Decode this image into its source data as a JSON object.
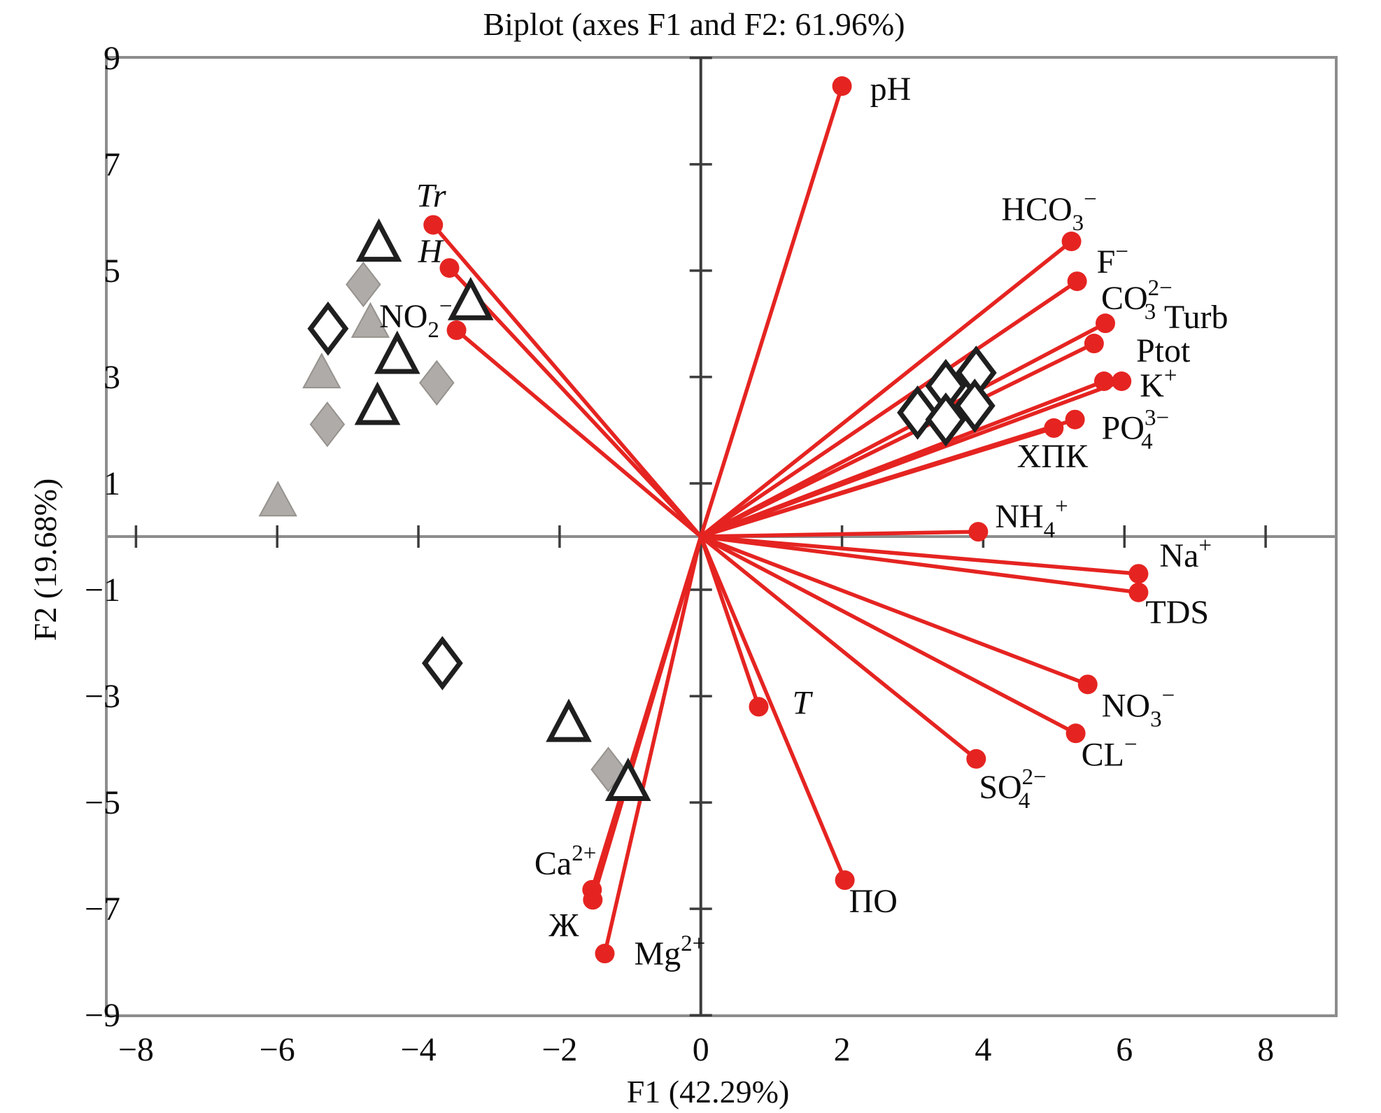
{
  "chart_data": {
    "type": "scatter",
    "subtype": "pca-biplot",
    "title": "Biplot (axes F1 and F2: 61.96%)",
    "xlabel": "F1 (42.29%)",
    "ylabel": "F2 (19.68%)",
    "xlim": [
      -8.42,
      9.0
    ],
    "ylim": [
      -9.01,
      9.01
    ],
    "x_ticks": [
      -8,
      -6,
      -4,
      -2,
      0,
      2,
      4,
      6,
      8
    ],
    "y_ticks": [
      -9,
      -7,
      -5,
      -3,
      -1,
      1,
      3,
      5,
      7,
      9
    ],
    "grid": false,
    "legend": "none",
    "colors": {
      "vector": "#e52421",
      "site_fill": "#afaba8",
      "site_edge": "#96928e",
      "open_edge": "#1f1f1f",
      "frame": "#8d8d8d",
      "axis": "#3c3c3c",
      "text": "#0d0d0d",
      "background": "#ffffff"
    },
    "vectors": [
      {
        "id": "pH",
        "x": 2.0,
        "y": 8.47,
        "anchor": "start",
        "dx": 40,
        "dy": 20,
        "parts": [
          [
            "n",
            "pH"
          ]
        ]
      },
      {
        "id": "Tr",
        "x": -3.79,
        "y": 5.86,
        "anchor": "middle",
        "dx": -3,
        "dy": -26,
        "parts": [
          [
            "i",
            "Tr"
          ]
        ]
      },
      {
        "id": "H",
        "x": -3.56,
        "y": 5.05,
        "anchor": "end",
        "dx": -10,
        "dy": -8,
        "parts": [
          [
            "i",
            "H"
          ]
        ]
      },
      {
        "id": "NO2",
        "x": -3.46,
        "y": 3.88,
        "anchor": "end",
        "dx": -6,
        "dy": -4,
        "parts": [
          [
            "n",
            "NO"
          ],
          [
            "sub",
            "2"
          ],
          [
            "sup",
            "−"
          ]
        ]
      },
      {
        "id": "HCO3",
        "x": 5.25,
        "y": 5.55,
        "anchor": "middle",
        "dx": -32,
        "dy": -30,
        "parts": [
          [
            "n",
            "HCO"
          ],
          [
            "sub",
            "3"
          ],
          [
            "sup",
            "−"
          ]
        ]
      },
      {
        "id": "F",
        "x": 5.33,
        "y": 4.8,
        "anchor": "start",
        "dx": 28,
        "dy": -12,
        "parts": [
          [
            "n",
            "F"
          ],
          [
            "sup",
            "−"
          ]
        ]
      },
      {
        "id": "CO3",
        "x": 5.73,
        "y": 4.01,
        "anchor": "start",
        "dx": -6,
        "dy": -20,
        "parts": [
          [
            "n",
            "CO"
          ],
          [
            "stack",
            "2−",
            "3"
          ]
        ]
      },
      {
        "id": "Turb",
        "x": 5.57,
        "y": 3.63,
        "anchor": "start",
        "dx": 100,
        "dy": -22,
        "parts": [
          [
            "n",
            "Turb"
          ]
        ]
      },
      {
        "id": "Ptot",
        "x": 5.71,
        "y": 2.92,
        "anchor": "start",
        "dx": 46,
        "dy": -28,
        "parts": [
          [
            "n",
            "Ptot"
          ]
        ]
      },
      {
        "id": "K",
        "x": 5.96,
        "y": 2.92,
        "anchor": "start",
        "dx": 26,
        "dy": 22,
        "parts": [
          [
            "n",
            "K"
          ],
          [
            "sup",
            "+"
          ]
        ]
      },
      {
        "id": "PO4",
        "x": 5.3,
        "y": 2.2,
        "anchor": "start",
        "dx": 38,
        "dy": 28,
        "parts": [
          [
            "n",
            "PO"
          ],
          [
            "stack",
            "3−",
            "4"
          ]
        ]
      },
      {
        "id": "XPK",
        "x": 5.0,
        "y": 2.04,
        "anchor": "middle",
        "dx": -2,
        "dy": 56,
        "parts": [
          [
            "n",
            "ХПК"
          ]
        ]
      },
      {
        "id": "NH4",
        "x": 3.93,
        "y": 0.09,
        "anchor": "start",
        "dx": 24,
        "dy": -6,
        "parts": [
          [
            "n",
            "NH"
          ],
          [
            "sub",
            "4"
          ],
          [
            "sup",
            "+"
          ]
        ]
      },
      {
        "id": "Na",
        "x": 6.2,
        "y": -0.7,
        "anchor": "start",
        "dx": 30,
        "dy": -10,
        "parts": [
          [
            "n",
            "Na"
          ],
          [
            "sup",
            "+"
          ]
        ]
      },
      {
        "id": "TDS",
        "x": 6.2,
        "y": -1.05,
        "anchor": "start",
        "dx": 10,
        "dy": 44,
        "parts": [
          [
            "n",
            "TDS"
          ]
        ]
      },
      {
        "id": "NO3",
        "x": 5.48,
        "y": -2.78,
        "anchor": "start",
        "dx": 20,
        "dy": 46,
        "parts": [
          [
            "n",
            "NO"
          ],
          [
            "sub",
            "3"
          ],
          [
            "sup",
            "−"
          ]
        ]
      },
      {
        "id": "CL",
        "x": 5.31,
        "y": -3.7,
        "anchor": "start",
        "dx": 8,
        "dy": 46,
        "parts": [
          [
            "n",
            "CL"
          ],
          [
            "sup",
            "−"
          ]
        ]
      },
      {
        "id": "SO4",
        "x": 3.9,
        "y": -4.18,
        "anchor": "start",
        "dx": 4,
        "dy": 56,
        "parts": [
          [
            "n",
            "SO"
          ],
          [
            "stack",
            "2−",
            "4"
          ]
        ]
      },
      {
        "id": "T",
        "x": 0.82,
        "y": -3.2,
        "anchor": "start",
        "dx": 48,
        "dy": 10,
        "parts": [
          [
            "i",
            "T"
          ]
        ]
      },
      {
        "id": "PO",
        "x": 2.04,
        "y": -6.46,
        "anchor": "start",
        "dx": 6,
        "dy": 46,
        "parts": [
          [
            "n",
            "ПО"
          ]
        ]
      },
      {
        "id": "Ca",
        "x": -1.54,
        "y": -6.64,
        "anchor": "end",
        "dx": 6,
        "dy": -22,
        "parts": [
          [
            "n",
            "Ca"
          ],
          [
            "sup",
            "2+"
          ]
        ]
      },
      {
        "id": "Zh",
        "x": -1.53,
        "y": -6.83,
        "anchor": "end",
        "dx": -20,
        "dy": 52,
        "parts": [
          [
            "n",
            "Ж"
          ]
        ]
      },
      {
        "id": "Mg",
        "x": -1.36,
        "y": -7.84,
        "anchor": "start",
        "dx": 42,
        "dy": 16,
        "parts": [
          [
            "n",
            "Mg"
          ],
          [
            "sup",
            "2+"
          ]
        ]
      }
    ],
    "series": [
      {
        "name": "sites-open-triangle",
        "marker": "open-triangle",
        "points": [
          [
            -4.56,
            5.53
          ],
          [
            -3.26,
            4.43
          ],
          [
            -4.3,
            3.42
          ],
          [
            -4.58,
            2.46
          ],
          [
            -1.87,
            -3.5
          ],
          [
            -1.03,
            -4.61
          ]
        ]
      },
      {
        "name": "sites-filled-triangle",
        "marker": "filled-triangle",
        "points": [
          [
            -4.68,
            4.04
          ],
          [
            -5.37,
            3.09
          ],
          [
            -5.99,
            0.68
          ]
        ]
      },
      {
        "name": "sites-open-diamond",
        "marker": "open-diamond",
        "points": [
          [
            -5.28,
            3.91
          ],
          [
            -3.66,
            -2.38
          ],
          [
            3.47,
            2.83
          ],
          [
            3.9,
            3.08
          ],
          [
            3.07,
            2.33
          ],
          [
            3.47,
            2.2
          ],
          [
            3.88,
            2.46
          ]
        ]
      },
      {
        "name": "sites-filled-diamond",
        "marker": "filled-diamond",
        "points": [
          [
            -4.78,
            4.74
          ],
          [
            -3.74,
            2.89
          ],
          [
            -5.29,
            2.11
          ],
          [
            -1.31,
            -4.38
          ]
        ]
      }
    ]
  }
}
